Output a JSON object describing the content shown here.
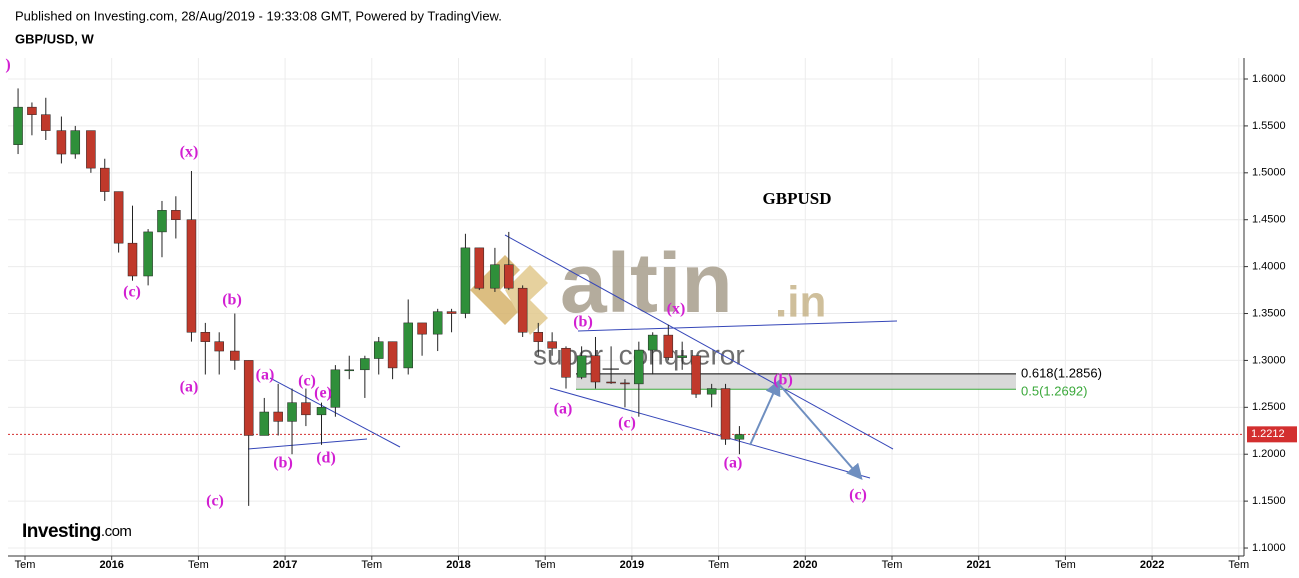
{
  "header": {
    "published": "Published on Investing.com, 28/Aug/2019 - 19:33:08 GMT, Powered by TradingView.",
    "symbol": "GBP/USD, W"
  },
  "watermark": {
    "brand": "altin",
    "suffix": ".in",
    "author": "super_conqueror"
  },
  "logo": {
    "name": "Investing",
    "suffix": ".com"
  },
  "chart_data": {
    "type": "candlestick",
    "title": "GBPUSD",
    "up_color": "#2f8f3a",
    "down_color": "#c0392b",
    "x": [
      2015.46,
      2015.54,
      2015.62,
      2015.71,
      2015.79,
      2015.88,
      2015.96,
      2016.04,
      2016.12,
      2016.21,
      2016.29,
      2016.37,
      2016.46,
      2016.54,
      2016.62,
      2016.71,
      2016.79,
      2016.88,
      2016.96,
      2017.04,
      2017.12,
      2017.21,
      2017.29,
      2017.37,
      2017.46,
      2017.54,
      2017.62,
      2017.71,
      2017.79,
      2017.88,
      2017.96,
      2018.04,
      2018.12,
      2018.21,
      2018.29,
      2018.37,
      2018.46,
      2018.54,
      2018.62,
      2018.71,
      2018.79,
      2018.88,
      2018.96,
      2019.04,
      2019.12,
      2019.21,
      2019.29,
      2019.37,
      2019.46,
      2019.54,
      2019.62
    ],
    "open": [
      1.53,
      1.57,
      1.562,
      1.545,
      1.52,
      1.545,
      1.505,
      1.48,
      1.425,
      1.39,
      1.437,
      1.46,
      1.45,
      1.33,
      1.32,
      1.31,
      1.3,
      1.22,
      1.245,
      1.235,
      1.255,
      1.242,
      1.25,
      1.29,
      1.29,
      1.302,
      1.32,
      1.292,
      1.34,
      1.328,
      1.352,
      1.35,
      1.42,
      1.377,
      1.402,
      1.377,
      1.33,
      1.32,
      1.313,
      1.282,
      1.305,
      1.277,
      1.276,
      1.275,
      1.311,
      1.327,
      1.303,
      1.305,
      1.264,
      1.27,
      1.216
    ],
    "high": [
      1.59,
      1.575,
      1.58,
      1.56,
      1.55,
      1.545,
      1.515,
      1.48,
      1.465,
      1.44,
      1.47,
      1.475,
      1.502,
      1.34,
      1.33,
      1.35,
      1.3,
      1.26,
      1.275,
      1.27,
      1.27,
      1.255,
      1.295,
      1.305,
      1.305,
      1.325,
      1.32,
      1.365,
      1.34,
      1.355,
      1.355,
      1.435,
      1.42,
      1.42,
      1.437,
      1.38,
      1.34,
      1.33,
      1.315,
      1.315,
      1.325,
      1.315,
      1.28,
      1.32,
      1.33,
      1.338,
      1.32,
      1.305,
      1.275,
      1.275,
      1.23
    ],
    "low": [
      1.52,
      1.54,
      1.535,
      1.51,
      1.515,
      1.5,
      1.47,
      1.415,
      1.385,
      1.38,
      1.41,
      1.43,
      1.32,
      1.285,
      1.285,
      1.29,
      1.145,
      1.22,
      1.22,
      1.2,
      1.23,
      1.21,
      1.24,
      1.28,
      1.26,
      1.285,
      1.28,
      1.285,
      1.305,
      1.31,
      1.33,
      1.345,
      1.375,
      1.373,
      1.375,
      1.325,
      1.305,
      1.305,
      1.27,
      1.28,
      1.27,
      1.275,
      1.25,
      1.24,
      1.285,
      1.3,
      1.29,
      1.26,
      1.25,
      1.21,
      1.2
    ],
    "close": [
      1.57,
      1.562,
      1.545,
      1.52,
      1.545,
      1.505,
      1.48,
      1.425,
      1.39,
      1.437,
      1.46,
      1.45,
      1.33,
      1.32,
      1.31,
      1.3,
      1.22,
      1.245,
      1.235,
      1.255,
      1.242,
      1.25,
      1.29,
      1.29,
      1.302,
      1.32,
      1.292,
      1.34,
      1.328,
      1.352,
      1.35,
      1.42,
      1.377,
      1.402,
      1.377,
      1.33,
      1.32,
      1.313,
      1.282,
      1.305,
      1.277,
      1.276,
      1.275,
      1.311,
      1.327,
      1.303,
      1.305,
      1.264,
      1.27,
      1.216,
      1.221
    ],
    "xlim": [
      2015.402,
      2022.53
    ],
    "xticks": [
      {
        "value": 2015.5,
        "label": "Tem"
      },
      2016,
      {
        "value": 2016.5,
        "label": "Tem"
      },
      2017,
      {
        "value": 2017.5,
        "label": "Tem"
      },
      2018,
      {
        "value": 2018.5,
        "label": "Tem"
      },
      2019,
      {
        "value": 2019.5,
        "label": "Tem"
      },
      2020,
      {
        "value": 2020.5,
        "label": "Tem"
      },
      2021,
      {
        "value": 2021.5,
        "label": "Tem"
      },
      2022,
      {
        "value": 2022.5,
        "label": "Tem"
      }
    ],
    "ylim": [
      1.0915,
      1.6224
    ],
    "yticks": [
      {
        "value": 1.1,
        "label": "1.1000"
      },
      {
        "value": 1.15,
        "label": "1.1500"
      },
      {
        "value": 1.2,
        "label": "1.2000"
      },
      {
        "value": 1.25,
        "label": "1.2500"
      },
      {
        "value": 1.3,
        "label": "1.3000"
      },
      {
        "value": 1.35,
        "label": "1.3500"
      },
      {
        "value": 1.4,
        "label": "1.4000"
      },
      {
        "value": 1.45,
        "label": "1.4500"
      },
      {
        "value": 1.5,
        "label": "1.5000"
      },
      {
        "value": 1.55,
        "label": "1.5500"
      },
      {
        "value": 1.6,
        "label": "1.6000"
      }
    ],
    "grid": true,
    "last_price": 1.2212,
    "last_price_color": "#d32f2f",
    "fib_levels": [
      {
        "label": "0.618(1.2856)",
        "value": 1.2856,
        "color": "#000000"
      },
      {
        "label": "0.5(1.2692)",
        "value": 1.2692,
        "color": "#3aa83a"
      }
    ],
    "annotations": [
      ")",
      "(x)",
      "(c)",
      "(b)",
      "(a)",
      "(a)",
      "(c)",
      "(e)",
      "(b)",
      "(d)",
      "(c)",
      "(b)",
      "(x)",
      "(a)",
      "(c)",
      "(b)",
      "(a)",
      "(c)"
    ],
    "annotation_color": "#d21fd2"
  }
}
